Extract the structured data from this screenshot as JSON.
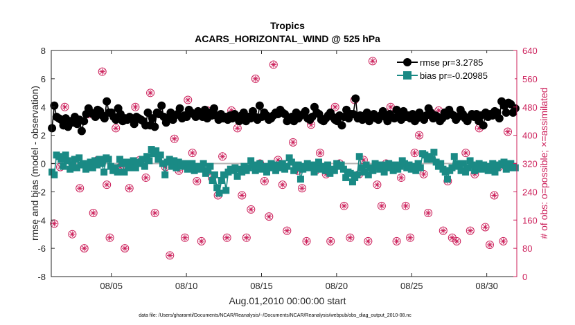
{
  "chart_data": {
    "type": "line",
    "title": "Tropics",
    "subtitle": "ACARS_HORIZONTAL_WIND @ 525 hPa",
    "xlabel": "Aug.01,2010 00:00:00 start",
    "ylabel": "rmse and bias (model - observation)",
    "y2label": "# of obs: o=possible; ×=assimilated",
    "footer": "data file: /Users/gharamti/Documents/NCAR/Reanalysis/~/Documents/NCAR/Reanalysis/webpub/obs_diag_output_2010-08.nc",
    "xlim": [
      1,
      32
    ],
    "ylim": [
      -8,
      8
    ],
    "y2lim": [
      0,
      640
    ],
    "x_ticks": [
      5,
      10,
      15,
      20,
      25,
      30
    ],
    "x_tick_labels": [
      "08/05",
      "08/10",
      "08/15",
      "08/20",
      "08/25",
      "08/30"
    ],
    "y_ticks": [
      -8,
      -6,
      -4,
      -2,
      0,
      2,
      4,
      6,
      8
    ],
    "y_tick_labels": [
      "-8",
      "-6",
      "-4",
      "-2",
      "0",
      "2",
      "4",
      "6",
      "8"
    ],
    "y2_ticks": [
      0,
      80,
      160,
      240,
      320,
      400,
      480,
      560,
      640
    ],
    "y2_tick_labels": [
      "0",
      "80",
      "160",
      "240",
      "320",
      "400",
      "480",
      "560",
      "640"
    ],
    "legend_placement": "top-right",
    "grid": false,
    "zero_line": 0,
    "colors": {
      "rmse": "#000000",
      "bias": "#1a8a85",
      "obs": "#cc1f5a",
      "zero_line": "#b4b4b4"
    },
    "series": [
      {
        "name": "rmse",
        "legend": "rmse pr=3.2785",
        "values": [
          2.5,
          4.1,
          3.3,
          3.2,
          3.1,
          2.7,
          3.2,
          2.6,
          3.0,
          2.9,
          3.3,
          2.8,
          3.1,
          2.3,
          3.0,
          3.5,
          3.9,
          3.6,
          3.5,
          3.3,
          3.8,
          3.7,
          3.4,
          3.2,
          4.4,
          3.6,
          3.6,
          3.3,
          3.1,
          3.9,
          3.5,
          3.0,
          3.2,
          3.1,
          3.3,
          3.2,
          2.8,
          3.3,
          3.2,
          3.1,
          3.0,
          2.7,
          3.6,
          2.7,
          3.2,
          2.6,
          3.6,
          3.5,
          4.1,
          3.3,
          2.9,
          3.2,
          3.6,
          3.1,
          3.4,
          3.5,
          3.9,
          3.2,
          3.4,
          3.3,
          3.8,
          3.6,
          3.5,
          3.3,
          3.7,
          3.6,
          3.3,
          3.8,
          3.2,
          3.6,
          3.4,
          3.9,
          3.4,
          3.1,
          3.5,
          3.2,
          3.3,
          3.1,
          3.4,
          3.2,
          3.5,
          3.3,
          3.0,
          3.4,
          3.6,
          3.0,
          3.3,
          3.2,
          3.7,
          3.3,
          3.1,
          4.1,
          3.3,
          3.6,
          3.4,
          3.1,
          3.2,
          3.4,
          3.6,
          3.5,
          3.8,
          3.6,
          3.5,
          3.0,
          3.2,
          3.3,
          3.0,
          3.6,
          3.2,
          3.4,
          3.5,
          3.7,
          3.2,
          3.1,
          3.3,
          4.0,
          3.6,
          3.5,
          3.1,
          3.0,
          3.2,
          3.4,
          3.6,
          3.3,
          3.1,
          3.0,
          3.4,
          2.7,
          3.3,
          3.8,
          3.2,
          3.5,
          3.5,
          4.6,
          3.2,
          3.4,
          3.1,
          3.4,
          3.6,
          3.0,
          3.3,
          3.5,
          3.2,
          3.1,
          3.4,
          3.7,
          3.3,
          3.0,
          3.5,
          3.3,
          3.2,
          3.8,
          3.4,
          3.1,
          3.7,
          3.3,
          3.4,
          3.2,
          3.5,
          3.0,
          3.2,
          3.6,
          3.3,
          3.1,
          3.4,
          3.9,
          3.6,
          3.2,
          3.4,
          3.3,
          3.0,
          3.2,
          3.6,
          3.4,
          3.8,
          3.5,
          3.4,
          3.1,
          3.3,
          3.8,
          3.5,
          3.2,
          3.0,
          3.3,
          3.5,
          3.3,
          3.5,
          3.0,
          3.4,
          2.7,
          3.6,
          3.3,
          3.5,
          3.4,
          3.7,
          3.6,
          3.2,
          4.4,
          4.1,
          3.6,
          4.3,
          4.2,
          3.6,
          3.9
        ],
        "value_note": "interpolated"
      },
      {
        "name": "bias",
        "legend": "bias pr=-0.20985",
        "values": [
          -0.6,
          -0.8,
          0.6,
          0.5,
          0.3,
          -0.2,
          0.6,
          0.2,
          -0.4,
          -0.1,
          0.3,
          -0.3,
          0.4,
          -0.1,
          0.0,
          -0.4,
          -0.2,
          0.1,
          -0.3,
          0.2,
          -0.1,
          0.3,
          0.0,
          -0.6,
          0.4,
          0.3,
          -0.2,
          -0.5,
          -0.3,
          -0.6,
          0.3,
          0.0,
          -0.6,
          0.1,
          -0.3,
          0.0,
          0.2,
          -0.3,
          0.1,
          0.0,
          0.3,
          -0.2,
          0.5,
          0.2,
          1.0,
          0.7,
          0.9,
          0.3,
          0.6,
          0.0,
          -0.8,
          0.1,
          0.3,
          -0.2,
          0.2,
          -0.3,
          0.1,
          -0.1,
          -0.2,
          0.0,
          -0.4,
          -0.3,
          0.0,
          -0.5,
          -0.2,
          -0.4,
          -0.3,
          0.0,
          -0.7,
          -0.5,
          -0.2,
          -1.2,
          -0.8,
          -1.7,
          -2.1,
          -1.2,
          -0.8,
          -1.9,
          -0.6,
          -0.4,
          -0.5,
          -0.3,
          -0.9,
          -0.4,
          -0.6,
          -0.2,
          -0.5,
          -0.3,
          0.2,
          -0.1,
          -0.5,
          -0.2,
          0.0,
          -0.4,
          -0.2,
          -0.6,
          -0.3,
          0.0,
          -0.2,
          -0.5,
          -0.1,
          -0.3,
          0.0,
          -0.4,
          -0.2,
          0.4,
          0.1,
          -0.5,
          -0.3,
          -0.1,
          -1.1,
          -0.4,
          -0.2,
          0.0,
          -0.3,
          -0.1,
          -0.6,
          -0.2,
          0.1,
          -0.4,
          -0.2,
          -0.5,
          -0.1,
          -0.7,
          -0.4,
          -0.5,
          0.0,
          -0.2,
          -0.1,
          -0.4,
          -1.0,
          -0.6,
          -0.7,
          -1.3,
          -1.0,
          -0.8,
          0.5,
          -0.3,
          -0.6,
          -0.1,
          -0.8,
          -0.3,
          -0.5,
          0.0,
          -0.2,
          -0.4,
          -0.1,
          -0.6,
          -0.2,
          0.0,
          -0.3,
          -0.5,
          -0.1,
          -0.4,
          -0.2,
          0.2,
          0.0,
          -0.3,
          -0.1,
          -0.4,
          -0.2,
          -0.5,
          0.0,
          -0.3,
          0.7,
          0.6,
          0.3,
          0.5,
          0.3,
          0.8,
          0.1,
          -0.2,
          0.0,
          -0.4,
          -0.6,
          -1.1,
          -0.5,
          -0.3,
          0.5,
          0.0,
          -0.2,
          -0.5,
          0.0,
          -0.6,
          -0.3,
          0.2,
          -0.1,
          -0.5,
          -0.2,
          0.0,
          -0.4,
          -0.1,
          -0.3,
          -0.5,
          -0.2,
          0.0,
          -0.6,
          -0.3,
          -0.1,
          0.0,
          0.1,
          -0.4,
          -0.3,
          0.0,
          -0.2,
          -0.3
        ]
      },
      {
        "name": "obs-possible",
        "axis": "right",
        "x": [
          1.2,
          1.6,
          1.9,
          2.4,
          2.6,
          2.9,
          3.2,
          3.5,
          3.8,
          4.1,
          4.4,
          4.7,
          4.9,
          5.3,
          5.6,
          5.9,
          6.2,
          6.6,
          6.9,
          7.3,
          7.6,
          7.9,
          8.2,
          8.6,
          8.9,
          9.2,
          9.5,
          9.9,
          10.1,
          10.4,
          10.7,
          11.0,
          11.4,
          11.7,
          12.1,
          12.4,
          12.7,
          13.0,
          13.4,
          13.7,
          14.0,
          14.3,
          14.6,
          14.9,
          15.2,
          15.5,
          15.8,
          16.1,
          16.4,
          16.7,
          17.1,
          17.4,
          17.7,
          18.0,
          18.3,
          18.6,
          18.9,
          19.3,
          19.6,
          19.9,
          20.2,
          20.5,
          20.9,
          21.2,
          21.5,
          21.8,
          22.1,
          22.4,
          22.7,
          23.0,
          23.3,
          23.6,
          24.0,
          24.3,
          24.6,
          24.9,
          25.2,
          25.5,
          25.8,
          26.1,
          26.4,
          26.8,
          27.1,
          27.4,
          27.7,
          28.0,
          28.3,
          28.6,
          28.9,
          29.2,
          29.5,
          29.9,
          30.2,
          30.5,
          30.8,
          31.1,
          31.4
        ],
        "values": [
          150,
          310,
          480,
          120,
          440,
          250,
          80,
          460,
          180,
          330,
          580,
          260,
          110,
          420,
          310,
          80,
          250,
          480,
          330,
          280,
          520,
          180,
          460,
          310,
          60,
          390,
          300,
          110,
          500,
          350,
          270,
          100,
          470,
          280,
          230,
          340,
          110,
          470,
          420,
          230,
          110,
          190,
          560,
          320,
          270,
          170,
          600,
          330,
          260,
          130,
          380,
          300,
          250,
          100,
          430,
          300,
          350,
          290,
          100,
          480,
          320,
          200,
          110,
          500,
          290,
          330,
          100,
          610,
          260,
          200,
          320,
          480,
          100,
          280,
          200,
          110,
          350,
          400,
          290,
          180,
          450,
          470,
          130,
          270,
          110,
          100,
          460,
          350,
          130,
          290,
          420,
          140,
          90,
          230,
          310,
          100,
          410
        ],
        "value_note": "interpolated"
      },
      {
        "name": "obs-assimilated",
        "axis": "right",
        "x": [
          1.2,
          1.6,
          1.9,
          2.4,
          2.6,
          2.9,
          3.2,
          3.5,
          3.8,
          4.1,
          4.4,
          4.7,
          4.9,
          5.3,
          5.6,
          5.9,
          6.2,
          6.6,
          6.9,
          7.3,
          7.6,
          7.9,
          8.2,
          8.6,
          8.9,
          9.2,
          9.5,
          9.9,
          10.1,
          10.4,
          10.7,
          11.0,
          11.4,
          11.7,
          12.1,
          12.4,
          12.7,
          13.0,
          13.4,
          13.7,
          14.0,
          14.3,
          14.6,
          14.9,
          15.2,
          15.5,
          15.8,
          16.1,
          16.4,
          16.7,
          17.1,
          17.4,
          17.7,
          18.0,
          18.3,
          18.6,
          18.9,
          19.3,
          19.6,
          19.9,
          20.2,
          20.5,
          20.9,
          21.2,
          21.5,
          21.8,
          22.1,
          22.4,
          22.7,
          23.0,
          23.3,
          23.6,
          24.0,
          24.3,
          24.6,
          24.9,
          25.2,
          25.5,
          25.8,
          26.1,
          26.4,
          26.8,
          27.1,
          27.4,
          27.7,
          28.0,
          28.3,
          28.6,
          28.9,
          29.2,
          29.5,
          29.9,
          30.2,
          30.5,
          30.8,
          31.1,
          31.4
        ],
        "values": [
          150,
          310,
          480,
          120,
          440,
          250,
          80,
          460,
          180,
          330,
          580,
          260,
          110,
          420,
          310,
          80,
          250,
          480,
          330,
          280,
          520,
          180,
          460,
          310,
          60,
          390,
          300,
          110,
          500,
          350,
          270,
          100,
          470,
          280,
          230,
          340,
          110,
          470,
          420,
          230,
          110,
          190,
          560,
          320,
          270,
          170,
          600,
          330,
          260,
          130,
          380,
          300,
          250,
          100,
          430,
          300,
          350,
          290,
          100,
          480,
          320,
          200,
          110,
          500,
          290,
          330,
          100,
          610,
          260,
          200,
          320,
          480,
          100,
          280,
          200,
          110,
          350,
          400,
          290,
          180,
          450,
          470,
          130,
          270,
          110,
          100,
          460,
          350,
          130,
          290,
          420,
          140,
          90,
          230,
          310,
          100,
          410
        ],
        "value_note": "interpolated"
      }
    ]
  }
}
